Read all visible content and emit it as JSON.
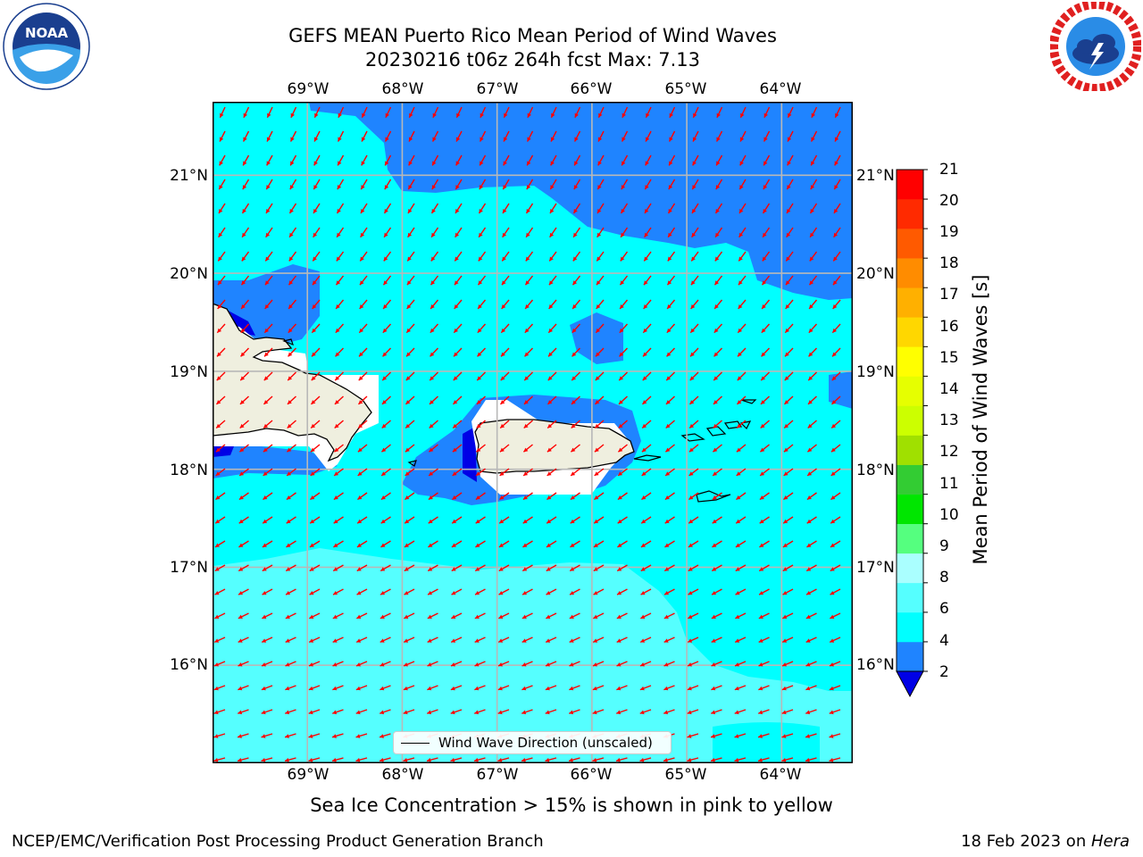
{
  "header": {
    "title_line1": "GEFS MEAN Puerto Rico Mean Period of Wind Waves",
    "title_line2": "20230216 t06z 264h fcst   Max: 7.13"
  },
  "logos": {
    "left": "noaa-logo",
    "left_text": "NOAA",
    "left_ring_text": "NATIONAL OCEANIC AND ATMOSPHERIC ADMINISTRATION · U.S. DEPARTMENT OF COMMERCE",
    "right": "national-weather-service-logo",
    "right_ring_text": "NATIONAL WEATHER SERVICE"
  },
  "map": {
    "lon_labels": [
      "69°W",
      "68°W",
      "67°W",
      "66°W",
      "65°W",
      "64°W"
    ],
    "lat_labels": [
      "21°N",
      "20°N",
      "19°N",
      "18°N",
      "17°N",
      "16°N"
    ],
    "lon_range": [
      -70,
      -63.25
    ],
    "lat_range": [
      15,
      21.75
    ],
    "arrow_direction": "toward south-west (trade-wind waves from north-east)",
    "colors": {
      "ocean_2_4": "#1f84ff",
      "ocean_4_6": "#00ffff",
      "ocean_6_8": "#55ffff",
      "ocean_lt_2": "#0000e6",
      "land": "#efefdf",
      "arrows": "#ff0000",
      "grid": "#b8b8b8"
    }
  },
  "legend": {
    "label": "Wind Wave Direction (unscaled)"
  },
  "colorbar": {
    "title": "Mean Period of Wind Waves [s]",
    "ticks": [
      "2",
      "4",
      "6",
      "8",
      "9",
      "10",
      "11",
      "12",
      "13",
      "14",
      "15",
      "16",
      "17",
      "18",
      "19",
      "20",
      "21"
    ],
    "bin_colors": [
      "#1f84ff",
      "#00ffff",
      "#55ffff",
      "#aaffff",
      "#55ff7f",
      "#00e600",
      "#33cc33",
      "#a0e000",
      "#ccff00",
      "#e6ff00",
      "#ffff00",
      "#ffd700",
      "#ffb000",
      "#ff8c00",
      "#ff5a00",
      "#ff2a00",
      "#ff0000"
    ],
    "under_color": "#0000e6"
  },
  "note": "Sea Ice Concentration > 15% is shown in pink to yellow",
  "footer": {
    "left": "NCEP/EMC/Verification Post Processing Product Generation Branch",
    "right_prefix": "18 Feb 2023 on ",
    "right_italic": "Hera"
  }
}
